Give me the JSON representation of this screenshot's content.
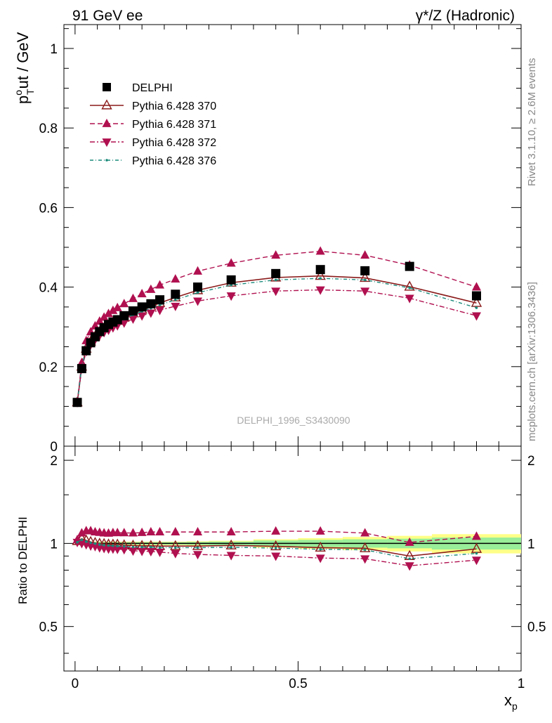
{
  "header": {
    "left": "91 GeV ee",
    "right": "γ*/Z (Hadronic)"
  },
  "side_text": {
    "rivet": "Rivet 3.1.10, ≥ 2.6M events",
    "mcplots": "mcplots.cern.ch [arXiv:1306.3436]"
  },
  "watermark": "DELPHI_1996_S3430090",
  "colors": {
    "data": "#000000",
    "s370": "#8b1a1a",
    "s371": "#b0104f",
    "s372": "#b0104f",
    "s376": "#1a8a7a",
    "band_inner": "#99ee99",
    "band_outer": "#ffff88"
  },
  "chart_data": [
    {
      "type": "scatter",
      "ylabel": "p_T^out / GeV",
      "xlim": [
        -0.025,
        1.0
      ],
      "ylim": [
        0,
        1.06
      ],
      "yticks": [
        0,
        0.2,
        0.4,
        0.6,
        0.8,
        1
      ],
      "ytick_labels": [
        "0",
        "0.2",
        "0.4",
        "0.6",
        "0.8",
        "1"
      ],
      "x": [
        0.005,
        0.015,
        0.025,
        0.035,
        0.045,
        0.055,
        0.065,
        0.075,
        0.085,
        0.095,
        0.11,
        0.13,
        0.15,
        0.17,
        0.19,
        0.225,
        0.275,
        0.35,
        0.45,
        0.55,
        0.65,
        0.75,
        0.9
      ],
      "series": [
        {
          "name": "DELPHI",
          "marker": "square",
          "values": [
            0.11,
            0.195,
            0.24,
            0.26,
            0.275,
            0.288,
            0.298,
            0.306,
            0.312,
            0.318,
            0.328,
            0.34,
            0.35,
            0.358,
            0.368,
            0.382,
            0.4,
            0.418,
            0.434,
            0.444,
            0.441,
            0.452,
            0.378
          ]
        },
        {
          "name": "Pythia 6.428 370",
          "marker": "open-triangle-up",
          "values": [
            0.11,
            0.2,
            0.245,
            0.263,
            0.276,
            0.287,
            0.296,
            0.303,
            0.309,
            0.315,
            0.323,
            0.334,
            0.343,
            0.351,
            0.36,
            0.374,
            0.392,
            0.411,
            0.424,
            0.428,
            0.423,
            0.401,
            0.36
          ]
        },
        {
          "name": "Pythia 6.428 371",
          "marker": "triangle-up",
          "values": [
            0.112,
            0.21,
            0.265,
            0.287,
            0.302,
            0.314,
            0.324,
            0.333,
            0.341,
            0.348,
            0.358,
            0.371,
            0.383,
            0.394,
            0.405,
            0.42,
            0.44,
            0.46,
            0.48,
            0.49,
            0.48,
            0.455,
            0.4
          ]
        },
        {
          "name": "Pythia 6.428 372",
          "marker": "triangle-down",
          "values": [
            0.11,
            0.195,
            0.238,
            0.255,
            0.268,
            0.278,
            0.286,
            0.292,
            0.298,
            0.303,
            0.31,
            0.32,
            0.328,
            0.335,
            0.342,
            0.352,
            0.365,
            0.378,
            0.39,
            0.393,
            0.39,
            0.372,
            0.328
          ]
        },
        {
          "name": "Pythia 6.428 376",
          "marker": "dot",
          "values": [
            0.11,
            0.2,
            0.243,
            0.261,
            0.274,
            0.285,
            0.294,
            0.3,
            0.306,
            0.311,
            0.319,
            0.33,
            0.339,
            0.347,
            0.355,
            0.368,
            0.386,
            0.405,
            0.418,
            0.422,
            0.418,
            0.398,
            0.348
          ]
        }
      ]
    },
    {
      "type": "line",
      "ylabel": "Ratio to DELPHI",
      "xlabel": "x_p",
      "xlim": [
        -0.025,
        1.0
      ],
      "ylim": [
        0.345,
        2.25
      ],
      "yticks": [
        0.5,
        1,
        2
      ],
      "ytick_labels": [
        "0.5",
        "1",
        "2"
      ],
      "xticks": [
        0,
        0.5,
        1
      ],
      "xtick_labels": [
        "0",
        "0.5",
        "1"
      ],
      "band_edges": [
        0.0,
        0.01,
        0.02,
        0.03,
        0.04,
        0.05,
        0.06,
        0.07,
        0.08,
        0.09,
        0.1,
        0.12,
        0.14,
        0.16,
        0.18,
        0.2,
        0.25,
        0.3,
        0.4,
        0.5,
        0.6,
        0.7,
        0.8,
        1.0
      ],
      "band_inner": [
        0.01,
        0.01,
        0.01,
        0.01,
        0.01,
        0.01,
        0.01,
        0.01,
        0.01,
        0.01,
        0.01,
        0.01,
        0.01,
        0.01,
        0.01,
        0.01,
        0.012,
        0.015,
        0.025,
        0.03,
        0.035,
        0.04,
        0.05
      ],
      "band_outer": [
        0.015,
        0.015,
        0.015,
        0.015,
        0.015,
        0.015,
        0.015,
        0.015,
        0.015,
        0.015,
        0.015,
        0.015,
        0.015,
        0.015,
        0.015,
        0.015,
        0.018,
        0.022,
        0.035,
        0.045,
        0.055,
        0.065,
        0.08
      ],
      "x": [
        0.005,
        0.015,
        0.025,
        0.035,
        0.045,
        0.055,
        0.065,
        0.075,
        0.085,
        0.095,
        0.11,
        0.13,
        0.15,
        0.17,
        0.19,
        0.225,
        0.275,
        0.35,
        0.45,
        0.55,
        0.65,
        0.75,
        0.9
      ],
      "series": [
        {
          "name": "Pythia 6.428 370",
          "values": [
            1.02,
            1.04,
            1.025,
            1.012,
            1.004,
            0.998,
            0.995,
            0.991,
            0.99,
            0.99,
            0.985,
            0.982,
            0.98,
            0.98,
            0.978,
            0.978,
            0.978,
            0.983,
            0.976,
            0.965,
            0.96,
            0.9,
            0.955
          ]
        },
        {
          "name": "Pythia 6.428 371",
          "values": [
            1.03,
            1.09,
            1.11,
            1.11,
            1.1,
            1.095,
            1.09,
            1.088,
            1.093,
            1.093,
            1.092,
            1.09,
            1.094,
            1.1,
            1.1,
            1.1,
            1.1,
            1.1,
            1.107,
            1.107,
            1.09,
            1.008,
            1.06
          ]
        },
        {
          "name": "Pythia 6.428 372",
          "values": [
            1.01,
            1.0,
            0.99,
            0.98,
            0.975,
            0.965,
            0.96,
            0.955,
            0.955,
            0.953,
            0.95,
            0.94,
            0.937,
            0.935,
            0.93,
            0.92,
            0.912,
            0.905,
            0.9,
            0.885,
            0.88,
            0.83,
            0.87
          ]
        },
        {
          "name": "Pythia 6.428 376",
          "values": [
            1.01,
            1.03,
            1.015,
            1.005,
            0.998,
            0.99,
            0.985,
            0.982,
            0.98,
            0.978,
            0.975,
            0.97,
            0.97,
            0.97,
            0.965,
            0.965,
            0.965,
            0.968,
            0.962,
            0.952,
            0.948,
            0.88,
            0.92
          ]
        }
      ]
    }
  ]
}
